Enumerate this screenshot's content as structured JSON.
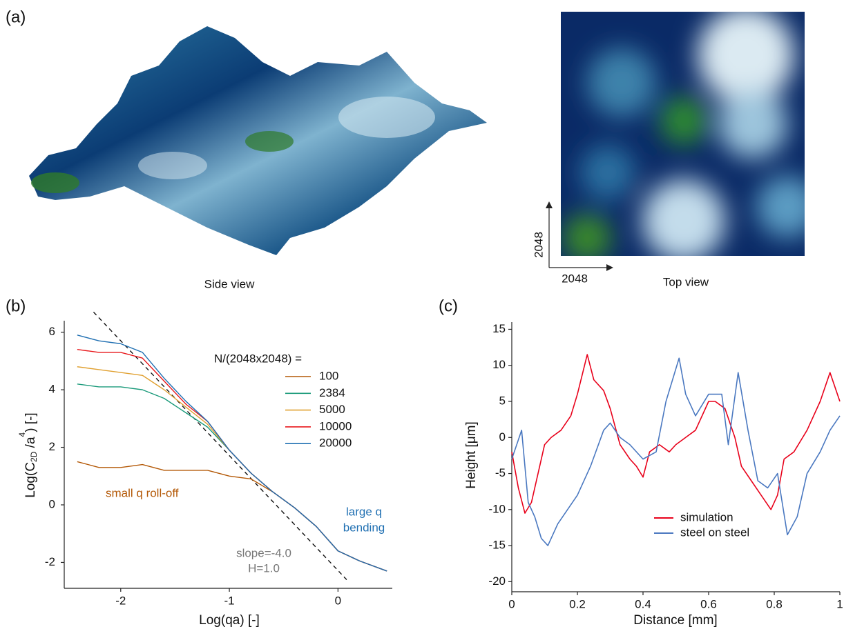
{
  "panel_a": {
    "label": "(a)",
    "side_caption": "Side view",
    "top_caption": "Top view",
    "axis_x_label": "2048",
    "axis_y_label": "2048"
  },
  "chart_data": [
    {
      "type": "line",
      "panel_label": "(b)",
      "x_label": "Log(qa) [-]",
      "y_label": [
        "Log(C",
        "2D",
        " /a",
        "4",
        ") [-]"
      ],
      "x": [
        -2.4,
        -2.2,
        -2.0,
        -1.8,
        -1.6,
        -1.4,
        -1.2,
        -1.0,
        -0.8,
        -0.6,
        -0.4,
        -0.2,
        0,
        0.2,
        0.45
      ],
      "series": [
        {
          "name": "100",
          "color": "#b35806",
          "values": [
            1.5,
            1.3,
            1.3,
            1.4,
            1.2,
            1.2,
            1.2,
            1.0,
            0.9,
            0.45,
            -0.1,
            -0.75,
            -1.6,
            -1.95,
            -2.3
          ]
        },
        {
          "name": "2384",
          "color": "#1a9a7a",
          "values": [
            4.2,
            4.1,
            4.1,
            4.0,
            3.7,
            3.2,
            2.7,
            1.9,
            1.1,
            0.45,
            -0.1,
            -0.75,
            -1.6,
            -1.95,
            -2.3
          ]
        },
        {
          "name": "5000",
          "color": "#e0a030",
          "values": [
            4.8,
            4.7,
            4.6,
            4.5,
            4.0,
            3.4,
            2.8,
            1.9,
            1.1,
            0.45,
            -0.1,
            -0.75,
            -1.6,
            -1.95,
            -2.3
          ]
        },
        {
          "name": "10000",
          "color": "#e8171b",
          "values": [
            5.4,
            5.3,
            5.3,
            5.1,
            4.3,
            3.5,
            2.9,
            1.9,
            1.1,
            0.45,
            -0.1,
            -0.75,
            -1.6,
            -1.95,
            -2.3
          ]
        },
        {
          "name": "20000",
          "color": "#1f6fb2",
          "values": [
            5.9,
            5.7,
            5.6,
            5.3,
            4.4,
            3.6,
            2.9,
            1.9,
            1.1,
            0.45,
            -0.1,
            -0.75,
            -1.6,
            -1.95,
            -2.3
          ]
        }
      ],
      "reference_line": {
        "x": [
          -2.25,
          0.08
        ],
        "values": [
          6.7,
          -2.6
        ]
      },
      "legend_title": "N/(2048x2048) =",
      "annotations": {
        "small_q": "small q roll-off",
        "large_q": [
          "large q",
          "bending"
        ],
        "slope": "slope=-4.0",
        "hurst": "H=1.0"
      },
      "xlim": [
        -2.52,
        0.5
      ],
      "ylim": [
        -2.9,
        6.4
      ],
      "xticks": [
        -2,
        -1,
        0
      ],
      "yticks": [
        -2,
        0,
        2,
        4,
        6
      ]
    },
    {
      "type": "line",
      "panel_label": "(c)",
      "x_label": "Distance  [mm]",
      "y_label": [
        "Height [μm]"
      ],
      "series": [
        {
          "name": "simulation",
          "color": "#e8001a",
          "x": [
            0,
            0.02,
            0.04,
            0.06,
            0.08,
            0.1,
            0.12,
            0.15,
            0.18,
            0.2,
            0.23,
            0.25,
            0.28,
            0.3,
            0.33,
            0.36,
            0.38,
            0.4,
            0.42,
            0.45,
            0.48,
            0.5,
            0.53,
            0.56,
            0.6,
            0.62,
            0.65,
            0.68,
            0.7,
            0.73,
            0.76,
            0.79,
            0.81,
            0.83,
            0.86,
            0.9,
            0.94,
            0.97,
            1.0
          ],
          "values": [
            -2,
            -7,
            -10.5,
            -9,
            -5,
            -1,
            0,
            1,
            3,
            6,
            11.5,
            8,
            6.5,
            4,
            -1,
            -3,
            -4,
            -5.5,
            -2,
            -1,
            -2,
            -1,
            0,
            1,
            5,
            5,
            4,
            0,
            -4,
            -6,
            -8,
            -10,
            -8,
            -3,
            -2,
            1,
            5,
            9,
            5
          ]
        },
        {
          "name": "steel on steel",
          "color": "#4a78c0",
          "x": [
            0,
            0.015,
            0.03,
            0.05,
            0.07,
            0.09,
            0.11,
            0.14,
            0.17,
            0.2,
            0.24,
            0.28,
            0.3,
            0.33,
            0.36,
            0.4,
            0.44,
            0.47,
            0.49,
            0.51,
            0.53,
            0.56,
            0.6,
            0.64,
            0.66,
            0.69,
            0.72,
            0.75,
            0.78,
            0.81,
            0.84,
            0.87,
            0.9,
            0.94,
            0.97,
            1.0
          ],
          "values": [
            -3,
            -1,
            1,
            -9,
            -11,
            -14,
            -15,
            -12,
            -10,
            -8,
            -4,
            1,
            2,
            0,
            -1,
            -3,
            -2,
            5,
            8,
            11,
            6,
            3,
            6,
            6,
            -1,
            9,
            1,
            -6,
            -7,
            -5,
            -13.5,
            -11,
            -5,
            -2,
            1,
            3
          ]
        }
      ],
      "xlim": [
        0,
        1
      ],
      "ylim": [
        -21.4,
        16
      ],
      "xticks": [
        0,
        0.2,
        0.4,
        0.6,
        0.8,
        1
      ],
      "yticks": [
        -20,
        -15,
        -10,
        -5,
        0,
        5,
        10,
        15
      ]
    }
  ]
}
